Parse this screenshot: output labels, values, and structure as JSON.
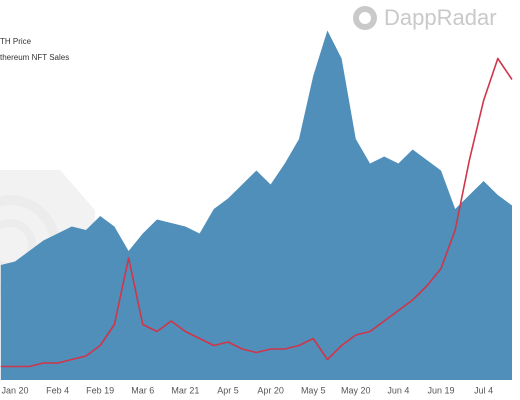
{
  "chart_data": {
    "type": "area",
    "watermark": "DappRadar",
    "categories": [
      null,
      "Jan 20",
      null,
      null,
      "Feb 4",
      null,
      null,
      "Feb 19",
      null,
      null,
      "Mar 6",
      null,
      null,
      "Mar 21",
      null,
      null,
      "Apr 5",
      null,
      null,
      "Apr 20",
      null,
      null,
      "May 5",
      null,
      null,
      "May 20",
      null,
      null,
      "Jun 4",
      null,
      null,
      "Jun 19",
      null,
      null,
      "Jul 4",
      null,
      null
    ],
    "ylim": [
      0,
      100
    ],
    "series": [
      {
        "name": "TH Price",
        "color": "#4f8fba",
        "fill": true,
        "values": [
          30,
          31,
          34,
          37,
          39,
          41,
          40,
          44,
          41,
          34,
          39,
          43,
          42,
          41,
          39,
          46,
          49,
          53,
          57,
          53,
          59,
          66,
          84,
          97,
          89,
          66,
          59,
          61,
          59,
          63,
          60,
          57,
          46,
          50,
          54,
          50,
          47
        ]
      },
      {
        "name": "thereum NFT Sales",
        "color": "#d0354a",
        "fill": false,
        "values": [
          1,
          1,
          1,
          2,
          2,
          3,
          4,
          7,
          13,
          32,
          13,
          11,
          14,
          11,
          9,
          7,
          8,
          6,
          5,
          6,
          6,
          7,
          9,
          3,
          7,
          10,
          11,
          14,
          17,
          20,
          24,
          29,
          40,
          60,
          77,
          89,
          83
        ]
      }
    ]
  }
}
